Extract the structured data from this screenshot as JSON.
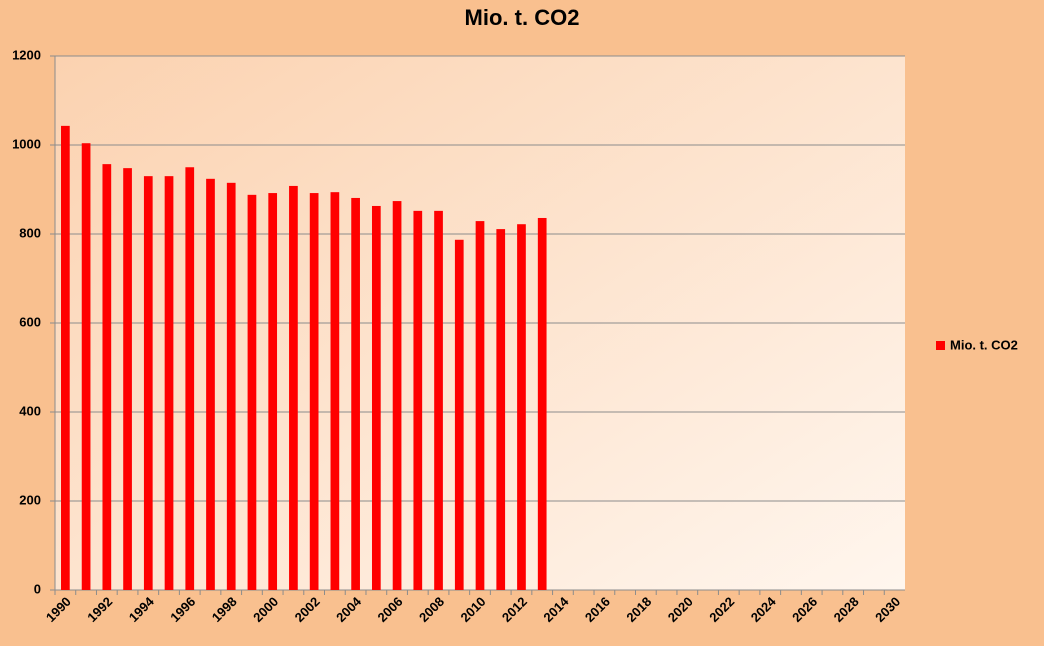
{
  "chart_data": {
    "type": "bar",
    "title": "Mio. t. CO2",
    "categories": [
      "1990",
      null,
      "1992",
      null,
      "1994",
      null,
      "1996",
      null,
      "1998",
      null,
      "2000",
      null,
      "2002",
      null,
      "2004",
      null,
      "2006",
      null,
      "2008",
      null,
      "2010",
      null,
      "2012",
      null,
      "2014",
      null,
      "2016",
      null,
      "2018",
      null,
      "2020",
      null,
      "2022",
      null,
      "2024",
      null,
      "2026",
      null,
      "2028",
      null,
      "2030"
    ],
    "series": [
      {
        "name": "Mio. t. CO2",
        "color": "#ff0000",
        "values": [
          1043,
          1004,
          957,
          948,
          930,
          930,
          950,
          924,
          915,
          888,
          892,
          908,
          892,
          894,
          881,
          863,
          874,
          852,
          852,
          787,
          829,
          811,
          822,
          836,
          null,
          null,
          null,
          null,
          null,
          null,
          null,
          null,
          null,
          null,
          null,
          null,
          null,
          null,
          null,
          null,
          null
        ]
      }
    ],
    "ylim": [
      0,
      1200
    ],
    "yticks": [
      0,
      200,
      400,
      600,
      800,
      1000,
      1200
    ],
    "grid": true,
    "legend": "right"
  }
}
